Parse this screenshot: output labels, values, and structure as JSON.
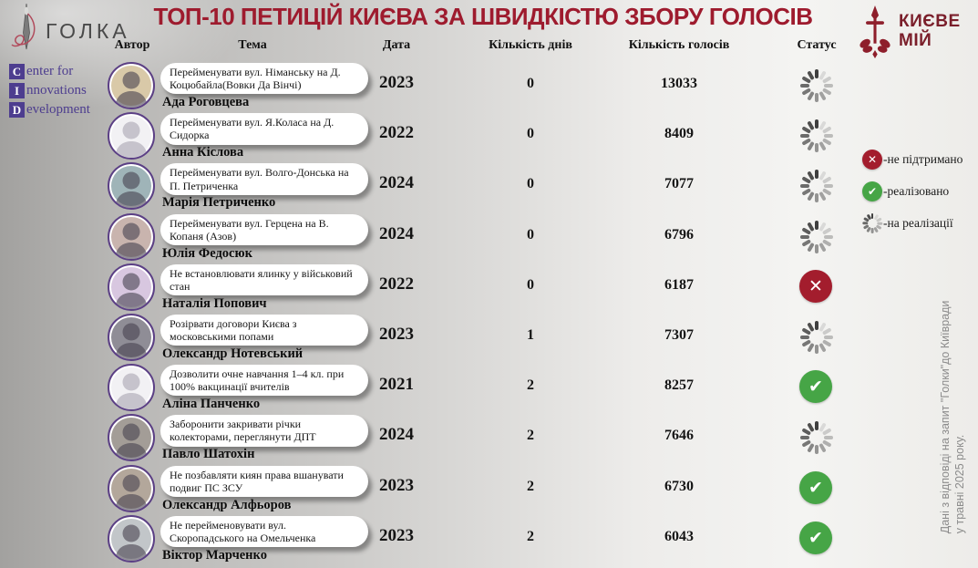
{
  "header": {
    "title": "ТОП-10 ПЕТИЦІЙ КИЄВА ЗА ШВИДКІСТЮ ЗБОРУ ГОЛОСІВ",
    "golka_logo_text": "ГОЛКА",
    "kyiv_logo_line1": "КИЄВЕ",
    "kyiv_logo_line2": "МІЙ"
  },
  "cid_logo": {
    "lines": [
      {
        "initial": "C",
        "rest": "enter for"
      },
      {
        "initial": "I",
        "rest": "nnovations"
      },
      {
        "initial": "D",
        "rest": "evelopment"
      }
    ]
  },
  "chart_data": {
    "type": "table",
    "title": "ТОП-10 ПЕТИЦІЙ КИЄВА ЗА ШВИДКІСТЮ ЗБОРУ ГОЛОСІВ",
    "columns": [
      "Автор",
      "Тема",
      "Дата",
      "Кількість днів",
      "Кількість голосів",
      "Статус"
    ],
    "rows": [
      {
        "author": "Ада Роговцева",
        "topic": "Перейменувати вул. Німанську на  Д. Коцюбайла(Вовки Да Вінчі)",
        "date": "2023",
        "days": "0",
        "votes": "13033",
        "status": "pending",
        "avatar_type": "photo",
        "avatar_color": "#d9c9a8"
      },
      {
        "author": "Анна Кіслова",
        "topic": "Перейменувати вул. Я.Коласа на Д. Сидорка",
        "date": "2022",
        "days": "0",
        "votes": "8409",
        "status": "pending",
        "avatar_type": "placeholder",
        "avatar_color": "#f2f1f4"
      },
      {
        "author": "Марія Петриченко",
        "topic": "Перейменувати вул. Волго-Донська на П. Петриченка",
        "date": "2024",
        "days": "0",
        "votes": "7077",
        "status": "pending",
        "avatar_type": "photo",
        "avatar_color": "#9fb4b8"
      },
      {
        "author": "Юлія Федосюк",
        "topic": "Перейменувати вул. Герцена на В. Копаня (Азов)",
        "date": "2024",
        "days": "0",
        "votes": "6796",
        "status": "pending",
        "avatar_type": "photo",
        "avatar_color": "#c9b4ae"
      },
      {
        "author": "Наталія Попович",
        "topic": "Не встановлювати ялинку у військовий стан",
        "date": "2022",
        "days": "0",
        "votes": "6187",
        "status": "rejected",
        "avatar_type": "photo",
        "avatar_color": "#d8c7e0"
      },
      {
        "author": "Олександр Нотевський",
        "topic": "Розірвати договори Києва з московськими попами",
        "date": "2023",
        "days": "1",
        "votes": "7307",
        "status": "pending",
        "avatar_type": "photo",
        "avatar_color": "#8f8d96"
      },
      {
        "author": "Аліна Панченко",
        "topic": "Дозволити очне навчання 1–4 кл. при 100% вакцинації вчителів",
        "date": "2021",
        "days": "2",
        "votes": "8257",
        "status": "done",
        "avatar_type": "placeholder",
        "avatar_color": "#f2f1f4"
      },
      {
        "author": "Павло Шатохін",
        "topic": "Заборонити закривати річки колекторами, переглянути ДПТ",
        "date": "2024",
        "days": "2",
        "votes": "7646",
        "status": "pending",
        "avatar_type": "photo",
        "avatar_color": "#a39d97"
      },
      {
        "author": "Олександр Алфьоров",
        "topic": "Не позбавляти киян права вшанувати подвиг ПС ЗСУ",
        "date": "2023",
        "days": "2",
        "votes": "6730",
        "status": "done",
        "avatar_type": "photo",
        "avatar_color": "#b3a79b"
      },
      {
        "author": "Віктор Марченко",
        "topic": "Не перейменовувати вул. Скоропадського на Омельченка",
        "date": "2023",
        "days": "2",
        "votes": "6043",
        "status": "done",
        "avatar_type": "photo",
        "avatar_color": "#c2c6c9"
      }
    ]
  },
  "legend": [
    {
      "status": "rejected",
      "label": "-не підтримано"
    },
    {
      "status": "done",
      "label": "-реалізовано"
    },
    {
      "status": "pending",
      "label": "-на реалізації"
    }
  ],
  "footnote": "Дані з відповіді на запит \"Голки\"до Київради у травні 2025 року.",
  "colors": {
    "title_red": "#9e1b2e",
    "cid_purple": "#4d3d8f",
    "avatar_ring_purple": "#5b3f85",
    "status_green": "#46a546",
    "status_red": "#a31d2d",
    "kyiv_logo_red": "#8e1e2b"
  }
}
